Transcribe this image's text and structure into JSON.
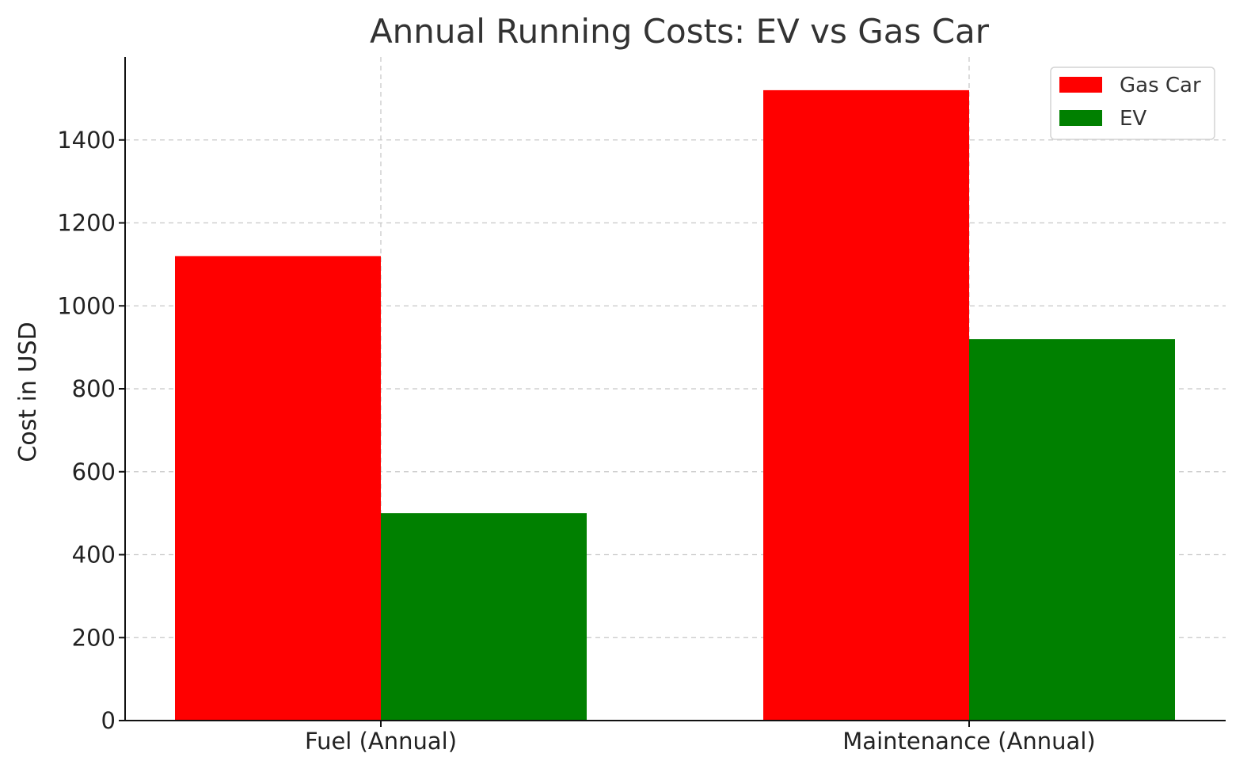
{
  "chart_data": {
    "type": "bar",
    "title": "Annual Running Costs: EV vs Gas Car",
    "xlabel": "",
    "ylabel": "Cost in USD",
    "categories": [
      "Fuel (Annual)",
      "Maintenance (Annual)"
    ],
    "series": [
      {
        "name": "Gas Car",
        "color": "#ff0000",
        "values": [
          1120,
          1520
        ]
      },
      {
        "name": "EV",
        "color": "#008000",
        "values": [
          500,
          920
        ]
      }
    ],
    "ylim": [
      0,
      1600
    ],
    "yticks": [
      0,
      200,
      400,
      600,
      800,
      1000,
      1200,
      1400
    ],
    "grid": true,
    "legend_position": "top-right"
  }
}
